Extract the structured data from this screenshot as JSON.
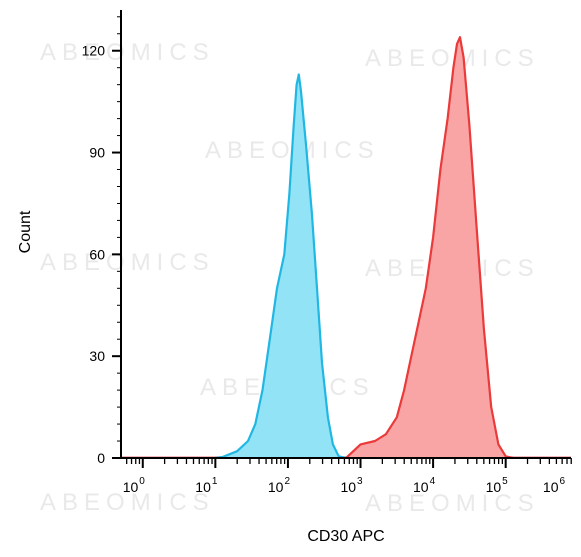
{
  "chart_data": {
    "type": "area",
    "title": "",
    "xlabel": "CD30 APC",
    "ylabel": "Count",
    "xscale": "log",
    "xlim_log10": [
      -0.3,
      5.9
    ],
    "ylim": [
      0,
      132
    ],
    "y_ticks": [
      0,
      30,
      60,
      90,
      120
    ],
    "x_ticks": [
      {
        "base": "10",
        "exp": "0",
        "log10": 0
      },
      {
        "base": "10",
        "exp": "1",
        "log10": 1
      },
      {
        "base": "10",
        "exp": "2",
        "log10": 2
      },
      {
        "base": "10",
        "exp": "3",
        "log10": 3
      },
      {
        "base": "10",
        "exp": "4",
        "log10": 4
      },
      {
        "base": "10",
        "exp": "5",
        "log10": 5
      },
      {
        "base": "10",
        "exp": "6",
        "log10": 6
      }
    ],
    "series": [
      {
        "line_color": "#21b7e3",
        "fill_color": "#93e3f7",
        "points": [
          [
            1.0,
            0
          ],
          [
            1.1,
            0.3
          ],
          [
            1.3,
            2
          ],
          [
            1.45,
            5
          ],
          [
            1.55,
            10
          ],
          [
            1.65,
            20
          ],
          [
            1.75,
            35
          ],
          [
            1.85,
            50
          ],
          [
            1.95,
            60
          ],
          [
            2.02,
            78
          ],
          [
            2.08,
            98
          ],
          [
            2.12,
            110
          ],
          [
            2.15,
            113
          ],
          [
            2.18,
            108
          ],
          [
            2.25,
            92
          ],
          [
            2.33,
            72
          ],
          [
            2.4,
            50
          ],
          [
            2.47,
            28
          ],
          [
            2.55,
            12
          ],
          [
            2.62,
            4
          ],
          [
            2.7,
            0.5
          ],
          [
            2.8,
            0
          ]
        ]
      },
      {
        "line_color": "#ea3a3a",
        "fill_color": "#f9a5a5",
        "points": [
          [
            2.8,
            0
          ],
          [
            2.9,
            2
          ],
          [
            3.0,
            4
          ],
          [
            3.2,
            5
          ],
          [
            3.35,
            7
          ],
          [
            3.5,
            12
          ],
          [
            3.6,
            20
          ],
          [
            3.7,
            30
          ],
          [
            3.8,
            40
          ],
          [
            3.9,
            50
          ],
          [
            4.0,
            65
          ],
          [
            4.1,
            85
          ],
          [
            4.2,
            100
          ],
          [
            4.28,
            115
          ],
          [
            4.33,
            122
          ],
          [
            4.37,
            124
          ],
          [
            4.42,
            118
          ],
          [
            4.5,
            98
          ],
          [
            4.6,
            68
          ],
          [
            4.7,
            38
          ],
          [
            4.8,
            15
          ],
          [
            4.9,
            4
          ],
          [
            5.0,
            0.5
          ],
          [
            5.1,
            0
          ]
        ]
      }
    ],
    "watermark": "ABEOMICS",
    "grid": false,
    "legend": "none"
  }
}
